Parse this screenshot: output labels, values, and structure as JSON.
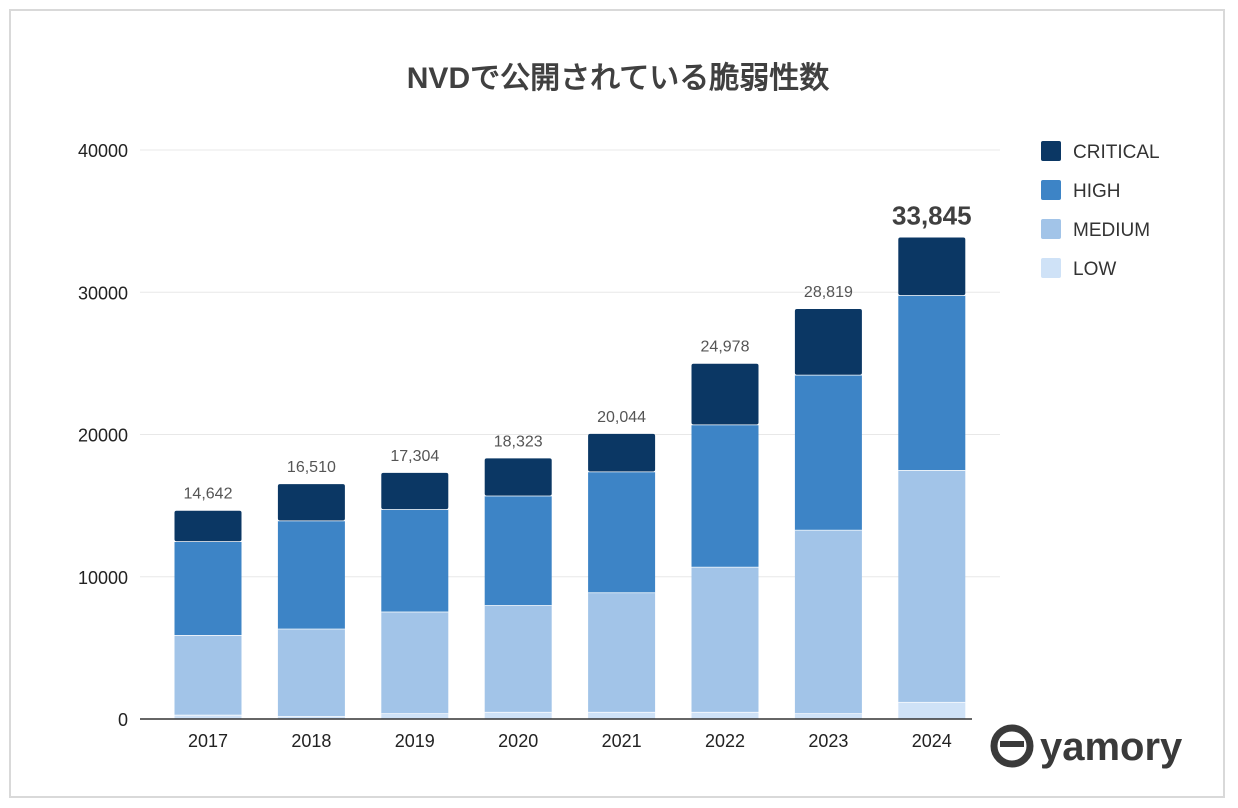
{
  "chart_data": {
    "type": "bar",
    "stacked": true,
    "title": "NVDで公開されている脆弱性数",
    "xlabel": "",
    "ylabel": "",
    "ylim": [
      0,
      40000
    ],
    "yticks": [
      0,
      10000,
      20000,
      30000,
      40000
    ],
    "categories": [
      "2017",
      "2018",
      "2019",
      "2020",
      "2021",
      "2022",
      "2023",
      "2024"
    ],
    "series": [
      {
        "name": "LOW",
        "color": "#cfe2f7",
        "values": [
          300,
          200,
          400,
          500,
          500,
          500,
          400,
          1200
        ]
      },
      {
        "name": "MEDIUM",
        "color": "#a2c4e8",
        "values": [
          5600,
          6150,
          7150,
          7500,
          8400,
          10200,
          12900,
          16300
        ]
      },
      {
        "name": "HIGH",
        "color": "#3d84c6",
        "values": [
          6600,
          7600,
          7200,
          7700,
          8500,
          10000,
          10900,
          12300
        ]
      },
      {
        "name": "CRITICAL",
        "color": "#0b3764",
        "values": [
          2142,
          2560,
          2554,
          2623,
          2644,
          4278,
          4619,
          4045
        ]
      }
    ],
    "totals": [
      "14,642",
      "16,510",
      "17,304",
      "18,323",
      "20,044",
      "24,978",
      "28,819",
      "33,845"
    ],
    "legend_position": "right",
    "grid": true
  },
  "brand": {
    "name": "yamory"
  }
}
